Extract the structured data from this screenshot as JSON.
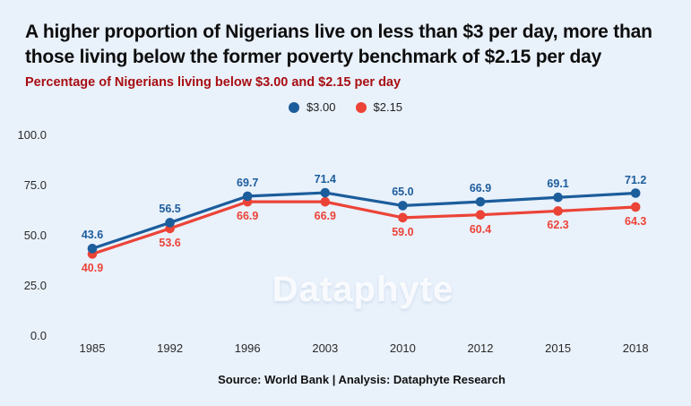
{
  "page": {
    "background": "#e9f1fb",
    "watermark": "Dataphyte",
    "source": "Source: World Bank | Analysis: Dataphyte Research"
  },
  "header": {
    "title_lines": [
      "A higher proportion of Nigerians live on less than $3 per day, more than",
      "those living below the former poverty benchmark of $2.15 per day"
    ]
  },
  "colors": {
    "background": "#e9f1fb",
    "title_text": "#0d0d0d",
    "subtitle_text": "#a80e12",
    "axis_text": "#2a2a2a",
    "series_blue": "#1c5d9c",
    "series_red": "#ec4337"
  },
  "chart_data": {
    "type": "line",
    "title": "A higher proportion of Nigerians live on less than $3 per day, more than those living below the former poverty benchmark of $2.15 per day",
    "subtitle": "Percentage of Nigerians living below $3.00 and $2.15 per day",
    "categories": [
      "1985",
      "1992",
      "1996",
      "2003",
      "2010",
      "2012",
      "2015",
      "2018"
    ],
    "series": [
      {
        "name": "$3.00",
        "color": "#1c5d9c",
        "label_position": "above",
        "values": [
          43.6,
          56.5,
          69.7,
          71.4,
          65.0,
          66.9,
          69.1,
          71.2
        ]
      },
      {
        "name": "$2.15",
        "color": "#ec4337",
        "label_position": "below",
        "values": [
          40.9,
          53.6,
          66.9,
          66.9,
          59.0,
          60.4,
          62.3,
          64.3
        ]
      }
    ],
    "xlabel": "",
    "ylabel": "",
    "ylim": [
      0,
      100
    ],
    "yticks": [
      0.0,
      25.0,
      50.0,
      75.0,
      100.0
    ],
    "grid": false,
    "legend_position": "top-center",
    "data_labels": true
  }
}
